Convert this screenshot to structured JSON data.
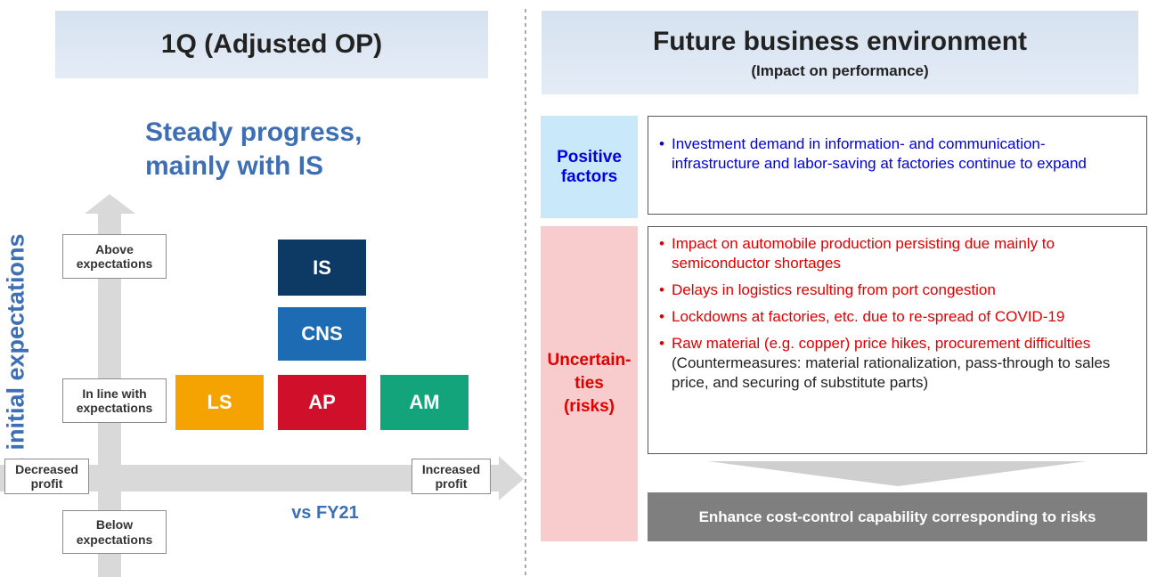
{
  "left": {
    "title": "1Q (Adjusted OP)",
    "headline": [
      "Steady progress,",
      "mainly with IS"
    ],
    "y_axis_label": "vs. initial expectations",
    "x_axis_label": "vs FY21",
    "levels": {
      "above": "Above expectations",
      "in_line": "In line with expectations",
      "below": "Below expectations",
      "decreased": "Decreased profit",
      "increased": "Increased profit"
    },
    "segments": {
      "is": "IS",
      "cns": "CNS",
      "ls": "LS",
      "ap": "AP",
      "am": "AM"
    }
  },
  "right": {
    "title": "Future business environment",
    "subtitle": "(Impact on performance)",
    "positive": {
      "label": "Positive factors",
      "items": [
        "Investment demand in information- and communication-infrastructure and labor-saving at factories continue to expand"
      ]
    },
    "uncertainties": {
      "label": [
        "Uncertain-",
        "ties",
        "(risks)"
      ],
      "items": [
        "Impact on automobile production persisting due mainly to semiconductor shortages",
        "Delays in logistics resulting from port congestion",
        "Lockdowns at factories, etc. due to re-spread of COVID-19",
        "Raw material (e.g. copper) price hikes, procurement difficulties"
      ],
      "note": "(Countermeasures: material rationalization, pass-through to sales price, and securing of substitute parts)"
    },
    "conclusion": "Enhance cost-control capability corresponding to risks"
  }
}
